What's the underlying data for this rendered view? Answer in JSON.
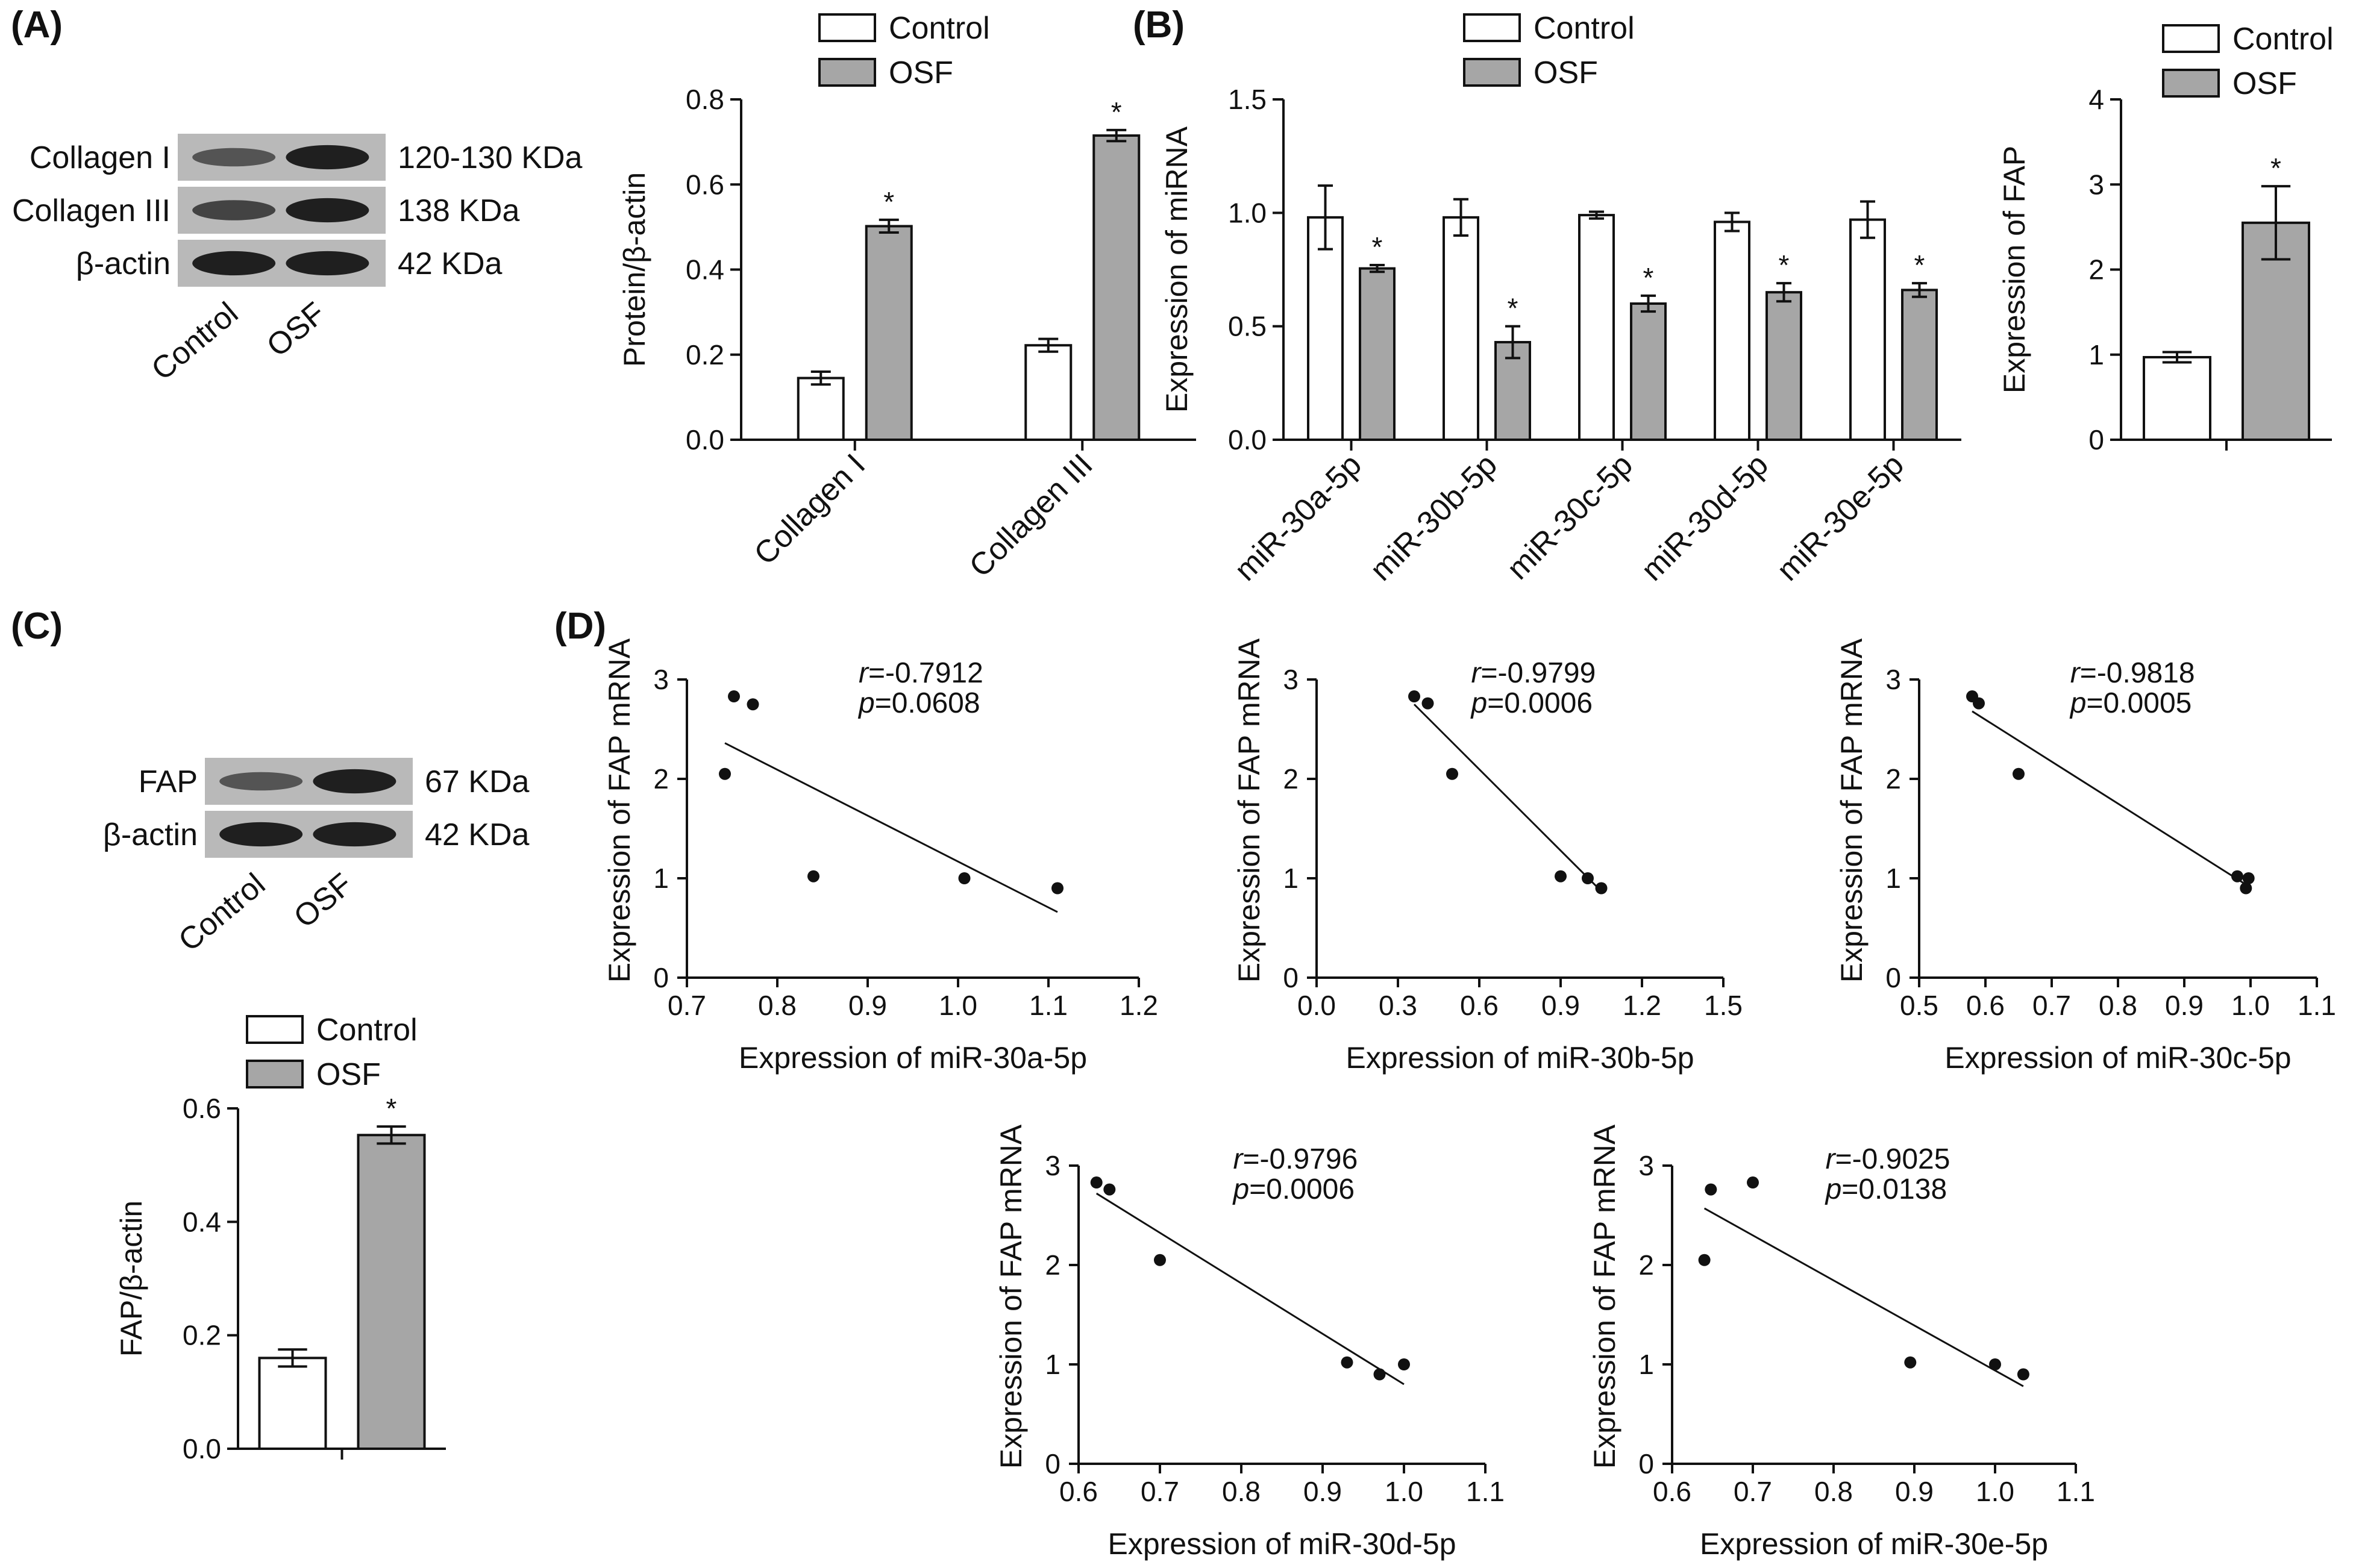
{
  "colors": {
    "control": "#ffffff",
    "osf": "#a6a6a6",
    "ink": "#111111",
    "blot_band": "#1a1a1a",
    "blot_bg": "#b9b9b9"
  },
  "panels": {
    "A": {
      "label": "(A)"
    },
    "B": {
      "label": "(B)"
    },
    "C": {
      "label": "(C)"
    },
    "D": {
      "label": "(D)"
    }
  },
  "legend": {
    "control": "Control",
    "osf": "OSF"
  },
  "significance_mark": "*",
  "blots": {
    "A": {
      "rows": [
        {
          "name": "Collagen I",
          "size": "120-130 KDa",
          "control_intensity": 0.45,
          "osf_intensity": 0.95
        },
        {
          "name": "Collagen III",
          "size": "138 KDa",
          "control_intensity": 0.6,
          "osf_intensity": 0.95
        },
        {
          "name": "β-actin",
          "size": "42 KDa",
          "control_intensity": 0.95,
          "osf_intensity": 0.95
        }
      ],
      "lanes": [
        "Control",
        "OSF"
      ]
    },
    "C": {
      "rows": [
        {
          "name": "FAP",
          "size": "67 KDa",
          "control_intensity": 0.45,
          "osf_intensity": 0.95
        },
        {
          "name": "β-actin",
          "size": "42 KDa",
          "control_intensity": 0.95,
          "osf_intensity": 0.95
        }
      ],
      "lanes": [
        "Control",
        "OSF"
      ]
    }
  },
  "chart_data": [
    {
      "id": "A-bar",
      "type": "bar",
      "title": "",
      "ylabel": "Protein/β-actin",
      "xlabel": "",
      "ylim": [
        0,
        0.8
      ],
      "yticks": [
        0.0,
        0.2,
        0.4,
        0.6,
        0.8
      ],
      "ytick_labels": [
        "0.0",
        "0.2",
        "0.4",
        "0.6",
        "0.8"
      ],
      "categories": [
        "Collagen I",
        "Collagen III"
      ],
      "series": [
        {
          "name": "Control",
          "values": [
            0.145,
            0.222
          ],
          "errors": [
            0.015,
            0.015
          ],
          "significant": [
            false,
            false
          ]
        },
        {
          "name": "OSF",
          "values": [
            0.502,
            0.715
          ],
          "errors": [
            0.015,
            0.013
          ],
          "significant": [
            true,
            true
          ]
        }
      ],
      "legend": "top"
    },
    {
      "id": "B-bar-mirna",
      "type": "bar",
      "title": "",
      "ylabel": "Expression of miRNA",
      "xlabel": "",
      "ylim": [
        0,
        1.5
      ],
      "yticks": [
        0.0,
        0.5,
        1.0,
        1.5
      ],
      "ytick_labels": [
        "0.0",
        "0.5",
        "1.0",
        "1.5"
      ],
      "categories": [
        "miR-30a-5p",
        "miR-30b-5p",
        "miR-30c-5p",
        "miR-30d-5p",
        "miR-30e-5p"
      ],
      "series": [
        {
          "name": "Control",
          "values": [
            0.98,
            0.98,
            0.99,
            0.96,
            0.97
          ],
          "errors": [
            0.14,
            0.08,
            0.015,
            0.04,
            0.08
          ],
          "significant": [
            false,
            false,
            false,
            false,
            false
          ]
        },
        {
          "name": "OSF",
          "values": [
            0.755,
            0.43,
            0.6,
            0.65,
            0.66
          ],
          "errors": [
            0.015,
            0.07,
            0.035,
            0.04,
            0.03
          ],
          "significant": [
            true,
            true,
            true,
            true,
            true
          ]
        }
      ],
      "legend": "top"
    },
    {
      "id": "B-bar-fap",
      "type": "bar",
      "title": "",
      "ylabel": "Expression of FAP",
      "xlabel": "",
      "ylim": [
        0,
        4
      ],
      "yticks": [
        0,
        1,
        2,
        3,
        4
      ],
      "ytick_labels": [
        "0",
        "1",
        "2",
        "3",
        "4"
      ],
      "categories": [
        ""
      ],
      "series": [
        {
          "name": "Control",
          "values": [
            0.97
          ],
          "errors": [
            0.06
          ],
          "significant": [
            false
          ]
        },
        {
          "name": "OSF",
          "values": [
            2.55
          ],
          "errors": [
            0.43
          ],
          "significant": [
            true
          ]
        }
      ],
      "legend": "top"
    },
    {
      "id": "C-bar",
      "type": "bar",
      "title": "",
      "ylabel": "FAP/β-actin",
      "xlabel": "",
      "ylim": [
        0,
        0.6
      ],
      "yticks": [
        0.0,
        0.2,
        0.4,
        0.6
      ],
      "ytick_labels": [
        "0.0",
        "0.2",
        "0.4",
        "0.6"
      ],
      "categories": [
        ""
      ],
      "series": [
        {
          "name": "Control",
          "values": [
            0.16
          ],
          "errors": [
            0.015
          ],
          "significant": [
            false
          ]
        },
        {
          "name": "OSF",
          "values": [
            0.553
          ],
          "errors": [
            0.015
          ],
          "significant": [
            true
          ]
        }
      ],
      "legend": "top"
    },
    {
      "id": "D1",
      "type": "scatter",
      "title": "",
      "xlabel": "Expression of miR-30a-5p",
      "ylabel": "Expression of FAP mRNA",
      "xlim": [
        0.7,
        1.2
      ],
      "ylim": [
        0,
        3
      ],
      "xticks": [
        0.7,
        0.8,
        0.9,
        1.0,
        1.1,
        1.2
      ],
      "xtick_labels": [
        "0.7",
        "0.8",
        "0.9",
        "1.0",
        "1.1",
        "1.2"
      ],
      "yticks": [
        0,
        1,
        2,
        3
      ],
      "ytick_labels": [
        "0",
        "1",
        "2",
        "3"
      ],
      "x": [
        0.742,
        0.752,
        0.773,
        0.84,
        1.007,
        1.11
      ],
      "y": [
        2.05,
        2.83,
        2.75,
        1.02,
        1.0,
        0.9
      ],
      "fit_line": [
        [
          0.742,
          2.36
        ],
        [
          1.11,
          0.66
        ]
      ],
      "r_prefix": "r",
      "r_text": "=-0.7912",
      "p_prefix": "p",
      "p_text": "=0.0608"
    },
    {
      "id": "D2",
      "type": "scatter",
      "title": "",
      "xlabel": "Expression of miR-30b-5p",
      "ylabel": "Expression of FAP mRNA",
      "xlim": [
        0.0,
        1.5
      ],
      "ylim": [
        0,
        3
      ],
      "xticks": [
        0.0,
        0.3,
        0.6,
        0.9,
        1.2,
        1.5
      ],
      "xtick_labels": [
        "0.0",
        "0.3",
        "0.6",
        "0.9",
        "1.2",
        "1.5"
      ],
      "yticks": [
        0,
        1,
        2,
        3
      ],
      "ytick_labels": [
        "0",
        "1",
        "2",
        "3"
      ],
      "x": [
        0.36,
        0.41,
        0.5,
        0.9,
        1.0,
        1.05
      ],
      "y": [
        2.83,
        2.76,
        2.05,
        1.02,
        1.0,
        0.9
      ],
      "fit_line": [
        [
          0.36,
          2.75
        ],
        [
          1.05,
          0.87
        ]
      ],
      "r_prefix": "r",
      "r_text": "=-0.9799",
      "p_prefix": "p",
      "p_text": "=0.0006"
    },
    {
      "id": "D3",
      "type": "scatter",
      "title": "",
      "xlabel": "Expression of miR-30c-5p",
      "ylabel": "Expression of FAP mRNA",
      "xlim": [
        0.5,
        1.1
      ],
      "ylim": [
        0,
        3
      ],
      "xticks": [
        0.5,
        0.6,
        0.7,
        0.8,
        0.9,
        1.0,
        1.1
      ],
      "xtick_labels": [
        "0.5",
        "0.6",
        "0.7",
        "0.8",
        "0.9",
        "1.0",
        "1.1"
      ],
      "yticks": [
        0,
        1,
        2,
        3
      ],
      "ytick_labels": [
        "0",
        "1",
        "2",
        "3"
      ],
      "x": [
        0.58,
        0.59,
        0.65,
        0.98,
        0.993,
        0.997
      ],
      "y": [
        2.83,
        2.76,
        2.05,
        1.02,
        0.9,
        1.0
      ],
      "fit_line": [
        [
          0.58,
          2.68
        ],
        [
          0.997,
          0.92
        ]
      ],
      "r_prefix": "r",
      "r_text": "=-0.9818",
      "p_prefix": "p",
      "p_text": "=0.0005"
    },
    {
      "id": "D4",
      "type": "scatter",
      "title": "",
      "xlabel": "Expression of miR-30d-5p",
      "ylabel": "Expression of FAP mRNA",
      "xlim": [
        0.6,
        1.1
      ],
      "ylim": [
        0,
        3
      ],
      "xticks": [
        0.6,
        0.7,
        0.8,
        0.9,
        1.0,
        1.1
      ],
      "xtick_labels": [
        "0.6",
        "0.7",
        "0.8",
        "0.9",
        "1.0",
        "1.1"
      ],
      "yticks": [
        0,
        1,
        2,
        3
      ],
      "ytick_labels": [
        "0",
        "1",
        "2",
        "3"
      ],
      "x": [
        0.622,
        0.638,
        0.7,
        0.93,
        0.97,
        1.0
      ],
      "y": [
        2.83,
        2.76,
        2.05,
        1.02,
        0.9,
        1.0
      ],
      "fit_line": [
        [
          0.622,
          2.72
        ],
        [
          1.0,
          0.8
        ]
      ],
      "r_prefix": "r",
      "r_text": "=-0.9796",
      "p_prefix": "p",
      "p_text": "=0.0006"
    },
    {
      "id": "D5",
      "type": "scatter",
      "title": "",
      "xlabel": "Expression of miR-30e-5p",
      "ylabel": "Expression of FAP mRNA",
      "xlim": [
        0.6,
        1.1
      ],
      "ylim": [
        0,
        3
      ],
      "xticks": [
        0.6,
        0.7,
        0.8,
        0.9,
        1.0,
        1.1
      ],
      "xtick_labels": [
        "0.6",
        "0.7",
        "0.8",
        "0.9",
        "1.0",
        "1.1"
      ],
      "yticks": [
        0,
        1,
        2,
        3
      ],
      "ytick_labels": [
        "0",
        "1",
        "2",
        "3"
      ],
      "x": [
        0.64,
        0.648,
        0.7,
        0.895,
        1.0,
        1.035
      ],
      "y": [
        2.05,
        2.76,
        2.83,
        1.02,
        1.0,
        0.9
      ],
      "fit_line": [
        [
          0.64,
          2.57
        ],
        [
          1.035,
          0.78
        ]
      ],
      "r_prefix": "r",
      "r_text": "=-0.9025",
      "p_prefix": "p",
      "p_text": "=0.0138"
    }
  ]
}
